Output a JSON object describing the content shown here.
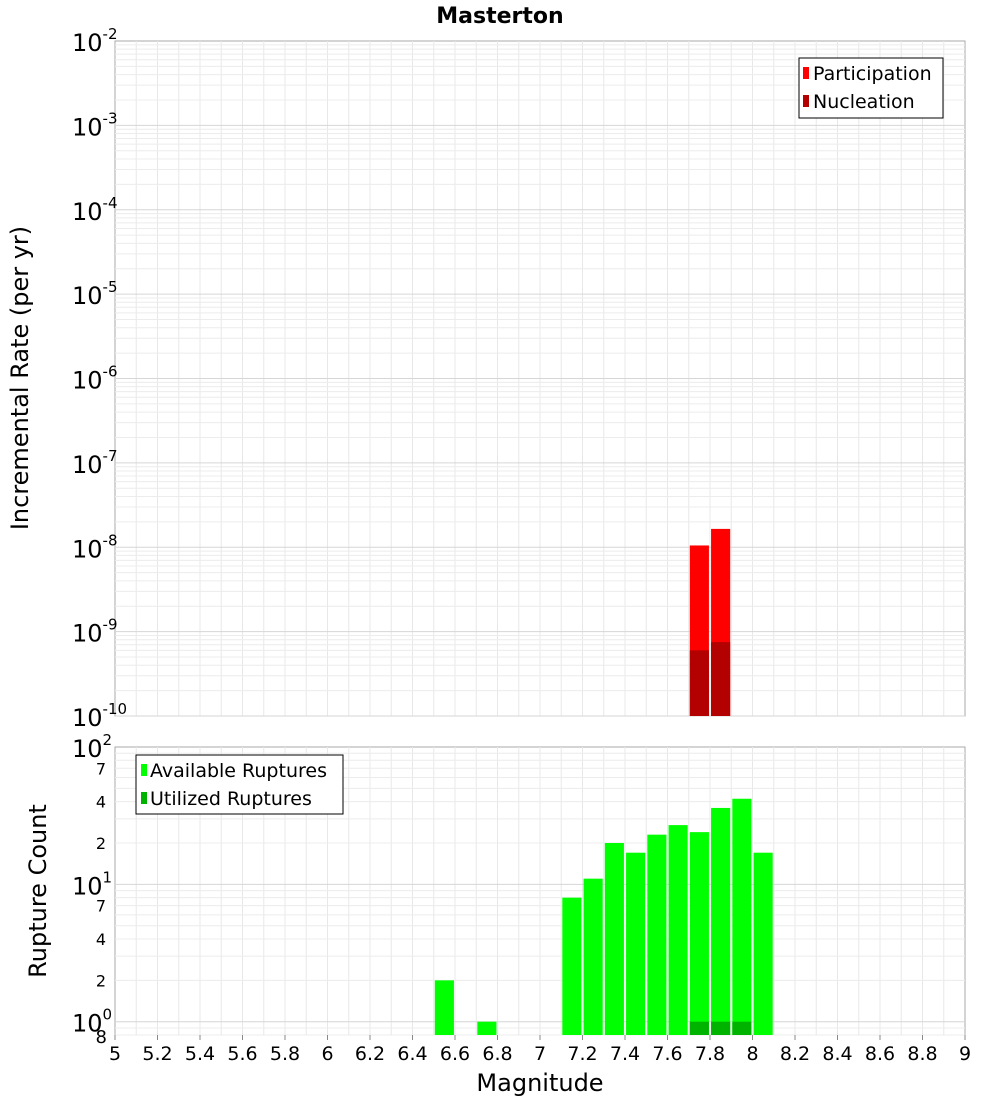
{
  "chart_data": [
    {
      "type": "bar",
      "title": "Masterton",
      "ylabel": "Incremental Rate (per yr)",
      "xlim": [
        5,
        9
      ],
      "ylim": [
        1e-10,
        0.01
      ],
      "yscale": "log",
      "grid": true,
      "legend_position": "top-right",
      "series": [
        {
          "name": "Participation",
          "color": "#ff0000",
          "x": [
            7.75,
            7.85
          ],
          "values": [
            1.05e-08,
            1.65e-08
          ]
        },
        {
          "name": "Nucleation",
          "color": "#b30000",
          "x": [
            7.75,
            7.85
          ],
          "values": [
            6e-10,
            7.5e-10
          ]
        }
      ]
    },
    {
      "type": "bar",
      "xlabel": "Magnitude",
      "ylabel": "Rupture Count",
      "xlim": [
        5,
        9
      ],
      "ylim": [
        0.8,
        100
      ],
      "yscale": "log",
      "grid": true,
      "legend_position": "top-left",
      "x_ticks": [
        "5",
        "5.2",
        "5.4",
        "5.6",
        "5.8",
        "6",
        "6.2",
        "6.4",
        "6.6",
        "6.8",
        "7",
        "7.2",
        "7.4",
        "7.6",
        "7.8",
        "8",
        "8.2",
        "8.4",
        "8.6",
        "8.8",
        "9"
      ],
      "series": [
        {
          "name": "Available Ruptures",
          "color": "#00ff00",
          "x": [
            6.55,
            6.75,
            7.15,
            7.25,
            7.35,
            7.45,
            7.55,
            7.65,
            7.75,
            7.85,
            7.95,
            8.05
          ],
          "values": [
            2,
            1,
            8,
            11,
            20,
            17,
            23,
            27,
            24,
            36,
            42,
            17
          ]
        },
        {
          "name": "Utilized Ruptures",
          "color": "#00b300",
          "x": [
            7.75,
            7.85,
            7.95
          ],
          "values": [
            1,
            1,
            1
          ]
        }
      ]
    }
  ]
}
